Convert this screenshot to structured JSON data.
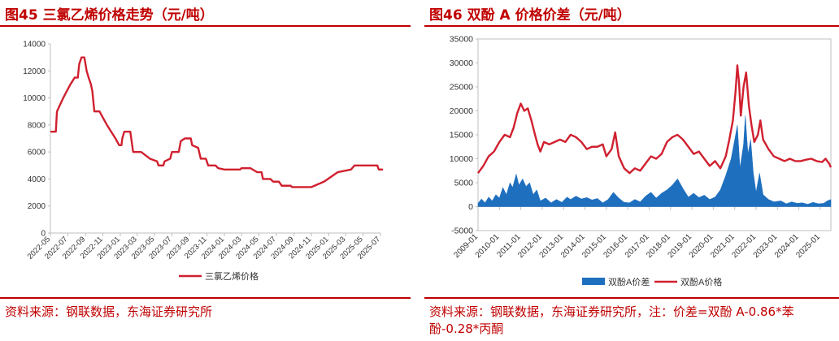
{
  "figures": [
    {
      "title": "图45 三氯乙烯价格走势（元/吨）",
      "source": "资料来源：钢联数据，东海证券研究所"
    },
    {
      "title": "图46 双酚 A 价格价差（元/吨）",
      "source": "资料来源：钢联数据，东海证券研究所，注：价差=双酚 A-0.86*苯酚-0.28*丙酮"
    }
  ],
  "chart_data": [
    {
      "type": "line",
      "title": "图45 三氯乙烯价格走势（元/吨）",
      "ylim": [
        0,
        14000
      ],
      "yticks": [
        0,
        2000,
        4000,
        6000,
        8000,
        10000,
        12000,
        14000
      ],
      "xlim": [
        "2022-05",
        "2025-07"
      ],
      "xticks": [
        "2022-05",
        "2022-07",
        "2022-09",
        "2022-11",
        "2023-01",
        "2023-03",
        "2023-05",
        "2023-07",
        "2023-09",
        "2023-11",
        "2024-01",
        "2024-03",
        "2024-05",
        "2024-07",
        "2024-09",
        "2024-11",
        "2025-01",
        "2025-03",
        "2025-05",
        "2025-07"
      ],
      "legend_position": "bottom",
      "series": [
        {
          "name": "三氯乙烯价格",
          "color": "#d0202f",
          "points": [
            [
              "2022-05-01",
              7500
            ],
            [
              "2022-05-20",
              7500
            ],
            [
              "2022-05-24",
              9000
            ],
            [
              "2022-06-15",
              10000
            ],
            [
              "2022-07-10",
              11000
            ],
            [
              "2022-07-25",
              11500
            ],
            [
              "2022-08-05",
              11500
            ],
            [
              "2022-08-10",
              12500
            ],
            [
              "2022-08-18",
              13000
            ],
            [
              "2022-08-28",
              13000
            ],
            [
              "2022-09-05",
              12000
            ],
            [
              "2022-09-12",
              11500
            ],
            [
              "2022-09-20",
              11000
            ],
            [
              "2022-09-25",
              10500
            ],
            [
              "2022-10-02",
              9000
            ],
            [
              "2022-10-20",
              9000
            ],
            [
              "2022-11-15",
              8000
            ],
            [
              "2022-12-15",
              7000
            ],
            [
              "2022-12-28",
              6500
            ],
            [
              "2023-01-05",
              6500
            ],
            [
              "2023-01-08",
              7000
            ],
            [
              "2023-01-15",
              7500
            ],
            [
              "2023-02-05",
              7500
            ],
            [
              "2023-02-15",
              6000
            ],
            [
              "2023-03-15",
              6000
            ],
            [
              "2023-04-15",
              5500
            ],
            [
              "2023-05-10",
              5300
            ],
            [
              "2023-05-15",
              5000
            ],
            [
              "2023-06-01",
              5000
            ],
            [
              "2023-06-05",
              5300
            ],
            [
              "2023-06-25",
              5500
            ],
            [
              "2023-07-01",
              6000
            ],
            [
              "2023-07-25",
              6000
            ],
            [
              "2023-08-01",
              6800
            ],
            [
              "2023-08-15",
              7000
            ],
            [
              "2023-09-05",
              7000
            ],
            [
              "2023-09-10",
              6500
            ],
            [
              "2023-10-01",
              6300
            ],
            [
              "2023-10-10",
              5500
            ],
            [
              "2023-10-28",
              5500
            ],
            [
              "2023-11-05",
              5000
            ],
            [
              "2023-12-01",
              5000
            ],
            [
              "2023-12-10",
              4800
            ],
            [
              "2024-01-01",
              4700
            ],
            [
              "2024-02-25",
              4700
            ],
            [
              "2024-03-01",
              4800
            ],
            [
              "2024-04-01",
              4800
            ],
            [
              "2024-04-25",
              4500
            ],
            [
              "2024-05-10",
              4500
            ],
            [
              "2024-05-15",
              4000
            ],
            [
              "2024-06-10",
              4000
            ],
            [
              "2024-06-20",
              3800
            ],
            [
              "2024-07-10",
              3800
            ],
            [
              "2024-07-20",
              3500
            ],
            [
              "2024-08-20",
              3500
            ],
            [
              "2024-08-25",
              3400
            ],
            [
              "2024-11-01",
              3400
            ],
            [
              "2024-12-15",
              3800
            ],
            [
              "2025-02-01",
              4500
            ],
            [
              "2025-03-20",
              4700
            ],
            [
              "2025-04-01",
              5000
            ],
            [
              "2025-06-20",
              5000
            ],
            [
              "2025-06-25",
              4700
            ],
            [
              "2025-07-10",
              4700
            ]
          ]
        }
      ]
    },
    {
      "type": "line_area",
      "title": "图46 双酚 A 价格价差（元/吨）",
      "ylim": [
        -5000,
        35000
      ],
      "yticks": [
        -5000,
        0,
        5000,
        10000,
        15000,
        20000,
        25000,
        30000,
        35000
      ],
      "xlim": [
        "2009-01",
        "2025-07"
      ],
      "xticks": [
        "2009-01",
        "2010-01",
        "2011-01",
        "2012-01",
        "2013-01",
        "2014-01",
        "2015-01",
        "2016-01",
        "2017-01",
        "2018-01",
        "2019-01",
        "2020-01",
        "2021-01",
        "2022-01",
        "2023-01",
        "2024-01",
        "2025-01"
      ],
      "legend_position": "bottom",
      "series": [
        {
          "name": "双酚A价差",
          "kind": "area",
          "color": "#1f6fbf",
          "points": [
            [
              "2009-01-01",
              700
            ],
            [
              "2009-03-01",
              1600
            ],
            [
              "2009-05-01",
              800
            ],
            [
              "2009-07-01",
              2000
            ],
            [
              "2009-09-01",
              1200
            ],
            [
              "2009-11-01",
              2500
            ],
            [
              "2010-01-01",
              1800
            ],
            [
              "2010-03-01",
              4000
            ],
            [
              "2010-05-01",
              2500
            ],
            [
              "2010-07-01",
              5000
            ],
            [
              "2010-08-15",
              4000
            ],
            [
              "2010-10-15",
              6800
            ],
            [
              "2010-12-01",
              4500
            ],
            [
              "2011-02-01",
              5800
            ],
            [
              "2011-04-01",
              4200
            ],
            [
              "2011-06-01",
              5000
            ],
            [
              "2011-08-01",
              2500
            ],
            [
              "2011-10-01",
              3500
            ],
            [
              "2011-12-01",
              1200
            ],
            [
              "2012-03-01",
              1800
            ],
            [
              "2012-06-01",
              800
            ],
            [
              "2012-09-01",
              1500
            ],
            [
              "2012-12-01",
              900
            ],
            [
              "2013-03-01",
              2000
            ],
            [
              "2013-05-01",
              1500
            ],
            [
              "2013-08-01",
              2200
            ],
            [
              "2013-11-01",
              1600
            ],
            [
              "2014-02-01",
              1900
            ],
            [
              "2014-05-01",
              1400
            ],
            [
              "2014-08-01",
              1700
            ],
            [
              "2014-11-01",
              800
            ],
            [
              "2015-02-01",
              1500
            ],
            [
              "2015-05-01",
              3000
            ],
            [
              "2015-08-01",
              1800
            ],
            [
              "2015-11-01",
              900
            ],
            [
              "2016-02-01",
              800
            ],
            [
              "2016-05-01",
              1500
            ],
            [
              "2016-08-01",
              1000
            ],
            [
              "2016-11-01",
              2200
            ],
            [
              "2017-02-01",
              3000
            ],
            [
              "2017-05-01",
              1800
            ],
            [
              "2017-08-01",
              2800
            ],
            [
              "2017-11-01",
              3500
            ],
            [
              "2018-02-01",
              4500
            ],
            [
              "2018-05-01",
              5800
            ],
            [
              "2018-08-01",
              3800
            ],
            [
              "2018-11-01",
              2000
            ],
            [
              "2019-02-01",
              2800
            ],
            [
              "2019-05-01",
              1900
            ],
            [
              "2019-08-01",
              2400
            ],
            [
              "2019-11-01",
              1500
            ],
            [
              "2020-02-01",
              2000
            ],
            [
              "2020-05-01",
              3500
            ],
            [
              "2020-08-01",
              6500
            ],
            [
              "2020-11-01",
              10000
            ],
            [
              "2021-01-01",
              14000
            ],
            [
              "2021-02-15",
              17000
            ],
            [
              "2021-04-01",
              8000
            ],
            [
              "2021-06-01",
              13000
            ],
            [
              "2021-07-01",
              19000
            ],
            [
              "2021-08-15",
              11000
            ],
            [
              "2021-10-01",
              14000
            ],
            [
              "2021-11-15",
              7000
            ],
            [
              "2022-01-01",
              3000
            ],
            [
              "2022-03-01",
              7000
            ],
            [
              "2022-05-01",
              2500
            ],
            [
              "2022-08-01",
              1500
            ],
            [
              "2022-11-01",
              1000
            ],
            [
              "2023-03-01",
              1200
            ],
            [
              "2023-06-01",
              600
            ],
            [
              "2023-09-01",
              1000
            ],
            [
              "2023-12-01",
              700
            ],
            [
              "2024-03-01",
              800
            ],
            [
              "2024-06-01",
              500
            ],
            [
              "2024-09-01",
              900
            ],
            [
              "2024-12-01",
              600
            ],
            [
              "2025-03-01",
              700
            ],
            [
              "2025-05-01",
              1200
            ],
            [
              "2025-07-01",
              1500
            ]
          ]
        },
        {
          "name": "双酚A价格",
          "kind": "line",
          "color": "#d0202f",
          "points": [
            [
              "2009-01-01",
              7000
            ],
            [
              "2009-04-01",
              8500
            ],
            [
              "2009-07-01",
              10500
            ],
            [
              "2009-10-01",
              11500
            ],
            [
              "2010-01-01",
              13500
            ],
            [
              "2010-04-01",
              15000
            ],
            [
              "2010-07-01",
              14500
            ],
            [
              "2010-09-01",
              16500
            ],
            [
              "2010-11-01",
              19500
            ],
            [
              "2011-01-01",
              21500
            ],
            [
              "2011-03-01",
              20000
            ],
            [
              "2011-05-01",
              20500
            ],
            [
              "2011-07-01",
              18000
            ],
            [
              "2011-09-01",
              15000
            ],
            [
              "2011-10-15",
              13000
            ],
            [
              "2011-12-01",
              11500
            ],
            [
              "2012-02-01",
              13500
            ],
            [
              "2012-05-01",
              13000
            ],
            [
              "2012-08-01",
              13500
            ],
            [
              "2012-11-01",
              14000
            ],
            [
              "2013-02-01",
              13500
            ],
            [
              "2013-05-01",
              15000
            ],
            [
              "2013-08-01",
              14500
            ],
            [
              "2013-11-01",
              13500
            ],
            [
              "2014-02-01",
              12000
            ],
            [
              "2014-05-01",
              12500
            ],
            [
              "2014-08-01",
              12500
            ],
            [
              "2014-11-01",
              13000
            ],
            [
              "2015-01-01",
              10500
            ],
            [
              "2015-04-01",
              12000
            ],
            [
              "2015-06-01",
              15500
            ],
            [
              "2015-08-01",
              10500
            ],
            [
              "2015-11-01",
              8000
            ],
            [
              "2016-02-01",
              7000
            ],
            [
              "2016-05-01",
              8000
            ],
            [
              "2016-08-01",
              7500
            ],
            [
              "2016-11-01",
              9000
            ],
            [
              "2017-02-01",
              10500
            ],
            [
              "2017-05-01",
              10000
            ],
            [
              "2017-08-01",
              11000
            ],
            [
              "2017-11-01",
              13500
            ],
            [
              "2018-02-01",
              14500
            ],
            [
              "2018-05-01",
              15000
            ],
            [
              "2018-08-01",
              14000
            ],
            [
              "2018-11-01",
              12500
            ],
            [
              "2019-02-01",
              11000
            ],
            [
              "2019-05-01",
              11500
            ],
            [
              "2019-08-01",
              10000
            ],
            [
              "2019-11-01",
              8500
            ],
            [
              "2020-02-01",
              9500
            ],
            [
              "2020-05-01",
              8000
            ],
            [
              "2020-08-01",
              10500
            ],
            [
              "2020-10-01",
              14000
            ],
            [
              "2020-12-01",
              18000
            ],
            [
              "2021-01-15",
              24000
            ],
            [
              "2021-02-15",
              29500
            ],
            [
              "2021-03-15",
              26000
            ],
            [
              "2021-04-15",
              19000
            ],
            [
              "2021-06-01",
              25000
            ],
            [
              "2021-07-15",
              28000
            ],
            [
              "2021-09-01",
              21000
            ],
            [
              "2021-10-15",
              17000
            ],
            [
              "2021-12-01",
              13500
            ],
            [
              "2022-02-01",
              15000
            ],
            [
              "2022-03-15",
              18000
            ],
            [
              "2022-05-01",
              14000
            ],
            [
              "2022-08-01",
              12000
            ],
            [
              "2022-11-01",
              10500
            ],
            [
              "2023-02-01",
              10000
            ],
            [
              "2023-05-01",
              9500
            ],
            [
              "2023-08-01",
              10000
            ],
            [
              "2023-11-01",
              9500
            ],
            [
              "2024-02-01",
              9500
            ],
            [
              "2024-05-01",
              9800
            ],
            [
              "2024-08-01",
              10000
            ],
            [
              "2024-11-01",
              9500
            ],
            [
              "2025-02-01",
              9300
            ],
            [
              "2025-04-01",
              10000
            ],
            [
              "2025-06-01",
              9000
            ],
            [
              "2025-07-01",
              8200
            ]
          ]
        }
      ]
    }
  ]
}
